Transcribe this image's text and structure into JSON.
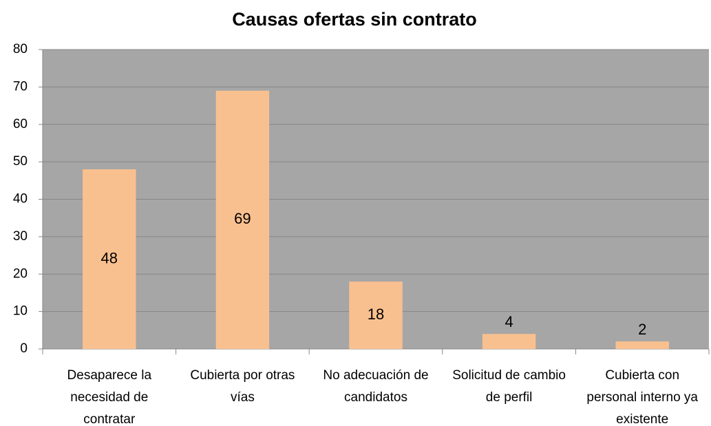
{
  "chart_data": {
    "type": "bar",
    "title": "Causas ofertas sin contrato",
    "categories": [
      "Desaparece la necesidad de contratar",
      "Cubierta por otras vías",
      "No adecuación de candidatos",
      "Solicitud de cambio de perfil",
      "Cubierta con personal interno ya existente"
    ],
    "values": [
      48,
      69,
      18,
      4,
      2
    ],
    "color": "#f9c08f",
    "plot_background": "#a6a6a6",
    "ylim": [
      0,
      80
    ],
    "yticks": [
      0,
      10,
      20,
      30,
      40,
      50,
      60,
      70,
      80
    ],
    "grid": true
  }
}
